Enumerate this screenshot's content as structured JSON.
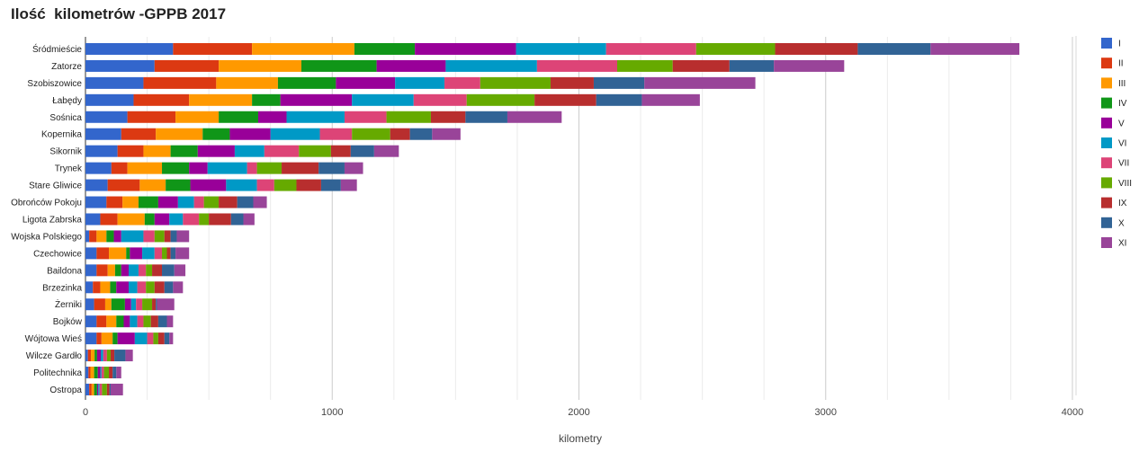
{
  "chart_data": {
    "type": "bar",
    "orientation": "horizontal",
    "stacked": true,
    "title": "Ilość  kilometrów -GPPB 2017",
    "xlabel": "kilometry",
    "ylabel": "",
    "xlim": [
      0,
      4000
    ],
    "xticks": [
      0,
      1000,
      2000,
      3000,
      4000
    ],
    "grid": true,
    "legend_position": "right",
    "categories": [
      "Śródmieście",
      "Zatorze",
      "Szobiszowice",
      "Łabędy",
      "Sośnica",
      "Kopernika",
      "Sikornik",
      "Trynek",
      "Stare Gliwice",
      "Obrońców Pokoju",
      "Ligota Zabrska",
      "Wojska Polskiego",
      "Czechowice",
      "Baildona",
      "Brzezinka",
      "Żerniki",
      "Bojków",
      "Wójtowa Wieś",
      "Wilcze Gardło",
      "Politechnika",
      "Ostropa"
    ],
    "series": [
      {
        "name": "I",
        "color": "#3366cc",
        "values": [
          355,
          280,
          235,
          195,
          170,
          145,
          130,
          105,
          90,
          85,
          60,
          15,
          45,
          45,
          30,
          35,
          45,
          45,
          10,
          12,
          15
        ]
      },
      {
        "name": "II",
        "color": "#dc3912",
        "values": [
          320,
          260,
          295,
          225,
          195,
          140,
          105,
          65,
          130,
          65,
          70,
          30,
          50,
          45,
          30,
          45,
          40,
          20,
          12,
          8,
          10
        ]
      },
      {
        "name": "III",
        "color": "#ff9900",
        "values": [
          415,
          335,
          250,
          255,
          175,
          190,
          110,
          140,
          105,
          65,
          110,
          40,
          70,
          30,
          40,
          25,
          40,
          45,
          15,
          15,
          10
        ]
      },
      {
        "name": "IV",
        "color": "#109618",
        "values": [
          245,
          305,
          235,
          115,
          160,
          110,
          110,
          110,
          100,
          80,
          40,
          30,
          15,
          25,
          25,
          55,
          30,
          20,
          10,
          15,
          12
        ]
      },
      {
        "name": "V",
        "color": "#990099",
        "values": [
          410,
          280,
          240,
          290,
          115,
          165,
          150,
          75,
          145,
          80,
          60,
          30,
          50,
          30,
          50,
          25,
          25,
          70,
          15,
          10,
          5
        ]
      },
      {
        "name": "VI",
        "color": "#0099c6",
        "values": [
          365,
          370,
          200,
          250,
          235,
          200,
          120,
          160,
          125,
          65,
          55,
          90,
          50,
          40,
          35,
          20,
          30,
          50,
          10,
          5,
          5
        ]
      },
      {
        "name": "VII",
        "color": "#dd4477",
        "values": [
          365,
          325,
          145,
          215,
          170,
          130,
          140,
          40,
          70,
          40,
          65,
          45,
          30,
          30,
          35,
          25,
          25,
          25,
          15,
          10,
          10
        ]
      },
      {
        "name": "VIII",
        "color": "#66aa00",
        "values": [
          320,
          225,
          285,
          275,
          180,
          155,
          130,
          100,
          90,
          60,
          40,
          40,
          20,
          25,
          35,
          40,
          30,
          20,
          15,
          20,
          20
        ]
      },
      {
        "name": "IX",
        "color": "#b82e2e",
        "values": [
          335,
          230,
          175,
          250,
          140,
          80,
          80,
          150,
          100,
          75,
          90,
          25,
          15,
          40,
          40,
          15,
          30,
          25,
          15,
          15,
          10
        ]
      },
      {
        "name": "X",
        "color": "#316395",
        "values": [
          295,
          180,
          205,
          185,
          170,
          90,
          95,
          105,
          80,
          65,
          50,
          25,
          20,
          50,
          35,
          5,
          35,
          20,
          45,
          15,
          5
        ]
      },
      {
        "name": "XI",
        "color": "#994499",
        "values": [
          360,
          285,
          450,
          235,
          220,
          115,
          100,
          75,
          65,
          55,
          45,
          50,
          55,
          45,
          40,
          70,
          25,
          15,
          30,
          20,
          50
        ]
      }
    ]
  }
}
